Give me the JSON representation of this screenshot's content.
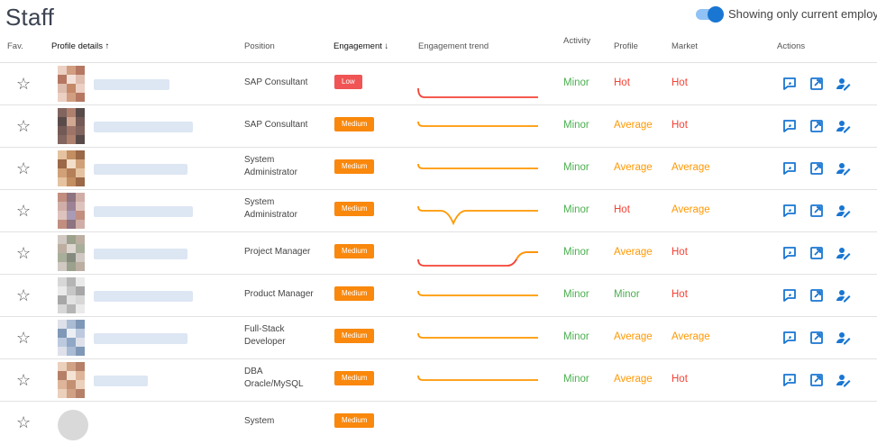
{
  "page": {
    "title": "Staff"
  },
  "toggle": {
    "label": "Showing only current employees",
    "on": true
  },
  "columns": {
    "fav": "Fav.",
    "profile_details": "Profile details ↑",
    "position": "Position",
    "engagement": "Engagement ↓",
    "engagement_trend": "Engagement trend",
    "activity": "Activity",
    "profile": "Profile",
    "market": "Market",
    "actions": "Actions"
  },
  "colors": {
    "green": "#4caf50",
    "red": "#f44336",
    "orange": "#ff9800",
    "blue": "#1976d2",
    "low_badge": "#f05454",
    "medium_badge": "#f9880c"
  },
  "actions_icons": [
    "feedback-icon",
    "open-external-icon",
    "edit-user-icon"
  ],
  "rows": [
    {
      "position": "SAP Consultant",
      "engagement": "Low",
      "trend": "low",
      "activity": "Minor",
      "profile": "Hot",
      "market": "Hot"
    },
    {
      "position": "SAP Consultant",
      "engagement": "Medium",
      "trend": "flat",
      "activity": "Minor",
      "profile": "Average",
      "market": "Hot"
    },
    {
      "position": "System Administrator",
      "engagement": "Medium",
      "trend": "flat",
      "activity": "Minor",
      "profile": "Average",
      "market": "Average"
    },
    {
      "position": "System Administrator",
      "engagement": "Medium",
      "trend": "dip",
      "activity": "Minor",
      "profile": "Hot",
      "market": "Average"
    },
    {
      "position": "Project Manager",
      "engagement": "Medium",
      "trend": "rise",
      "activity": "Minor",
      "profile": "Average",
      "market": "Hot"
    },
    {
      "position": "Product Manager",
      "engagement": "Medium",
      "trend": "flat",
      "activity": "Minor",
      "profile": "Minor",
      "market": "Hot"
    },
    {
      "position": "Full-Stack Developer",
      "engagement": "Medium",
      "trend": "flat",
      "activity": "Minor",
      "profile": "Average",
      "market": "Average"
    },
    {
      "position": "DBA Oracle/MySQL",
      "engagement": "Medium",
      "trend": "flat",
      "activity": "Minor",
      "profile": "Average",
      "market": "Hot"
    },
    {
      "position": "System",
      "engagement": "Medium",
      "trend": "none",
      "activity": "",
      "profile": "",
      "market": ""
    }
  ]
}
